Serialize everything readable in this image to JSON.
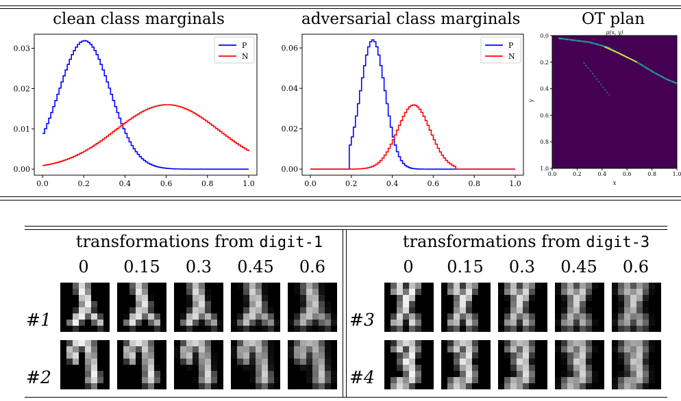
{
  "charts_titles": {
    "clean": "clean class marginals",
    "adversarial": "adversarial class marginals",
    "ot": "OT plan",
    "ot_subtitle": "μ(x, y)"
  },
  "chart_data": [
    {
      "type": "line",
      "title": "clean class marginals",
      "xlim": [
        0,
        1
      ],
      "ylim": [
        -0.0015,
        0.0335
      ],
      "xticks": [
        "0.0",
        "0.2",
        "0.4",
        "0.6",
        "0.8",
        "1.0"
      ],
      "yticks": [
        "0.00",
        "0.01",
        "0.02",
        "0.03"
      ],
      "legend_position": "top-right",
      "series": [
        {
          "name": "P",
          "color": "#0000ff",
          "kind": "gaussian",
          "mean": 0.2,
          "sd": 0.125,
          "peak": 0.0319,
          "xmin": 0,
          "xmax": 1
        },
        {
          "name": "N",
          "color": "#ff0000",
          "kind": "gaussian",
          "mean": 0.6,
          "sd": 0.25,
          "peak": 0.016,
          "xmin": 0,
          "xmax": 1
        }
      ]
    },
    {
      "type": "line",
      "title": "adversarial class marginals",
      "xlim": [
        0,
        1
      ],
      "ylim": [
        -0.003,
        0.0668
      ],
      "xticks": [
        "0.0",
        "0.2",
        "0.4",
        "0.6",
        "0.8",
        "1.0"
      ],
      "yticks": [
        "0.00",
        "0.02",
        "0.04",
        "0.06"
      ],
      "legend_position": "top-right",
      "series": [
        {
          "name": "P",
          "color": "#0000ff",
          "kind": "truncated_gaussian",
          "mean": 0.3,
          "sd": 0.06,
          "peak": 0.064,
          "xmin": 0.19,
          "xmax": 0.7
        },
        {
          "name": "N",
          "color": "#ff0000",
          "kind": "truncated_gaussian",
          "mean": 0.5,
          "sd": 0.08,
          "peak": 0.0318,
          "xmin": 0.19,
          "xmax": 0.7
        }
      ]
    },
    {
      "type": "heatmap",
      "title": "OT plan",
      "subtitle": "μ(x, y)",
      "xlabel": "x",
      "ylabel": "y",
      "xlim": [
        0,
        1
      ],
      "ylim": [
        1,
        0
      ],
      "xticks": [
        "0.0",
        "0.2",
        "0.4",
        "0.6",
        "0.8",
        "1.0"
      ],
      "yticks": [
        "0.0",
        "0.2",
        "0.4",
        "0.6",
        "0.8",
        "1.0"
      ],
      "background": "#440154",
      "paths": [
        {
          "points": [
            [
              0.05,
              0.02
            ],
            [
              0.3,
              0.05
            ],
            [
              0.45,
              0.09
            ],
            [
              0.55,
              0.14
            ],
            [
              0.68,
              0.2
            ],
            [
              0.82,
              0.28
            ],
            [
              0.92,
              0.33
            ],
            [
              1.0,
              0.36
            ]
          ],
          "intensity": "high"
        },
        {
          "points": [
            [
              0.25,
              0.2
            ],
            [
              0.32,
              0.28
            ],
            [
              0.4,
              0.38
            ],
            [
              0.46,
              0.45
            ]
          ],
          "intensity": "low"
        }
      ]
    }
  ],
  "transforms": {
    "left_header_text": "transformations from ",
    "left_header_digit": "digit-1",
    "right_header_text": "transformations from ",
    "right_header_digit": "digit-3",
    "levels": [
      "0",
      "0.15",
      "0.3",
      "0.45",
      "0.6"
    ],
    "rows": [
      {
        "label": "#1",
        "side": "left"
      },
      {
        "label": "#2",
        "side": "left"
      },
      {
        "label": "#3",
        "side": "right"
      },
      {
        "label": "#4",
        "side": "right"
      }
    ]
  }
}
